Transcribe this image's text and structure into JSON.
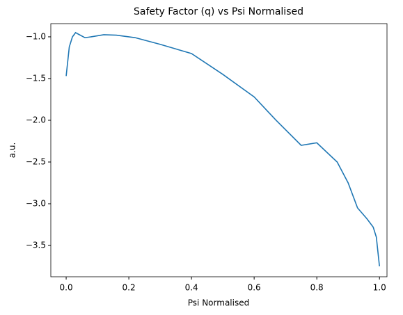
{
  "chart_data": {
    "type": "line",
    "title": "Safety Factor (q) vs Psi Normalised",
    "x_label": "Psi Normalised",
    "y_label": "a.u.",
    "x": [
      0,
      0.01,
      0.02,
      0.03,
      0.04,
      0.06,
      0.08,
      0.12,
      0.16,
      0.22,
      0.3,
      0.4,
      0.5,
      0.6,
      0.67,
      0.75,
      0.8,
      0.865,
      0.9,
      0.93,
      0.96,
      0.98,
      0.99,
      1.0
    ],
    "series": [
      {
        "name": "q",
        "color": "#1f77b4",
        "values": [
          -1.47,
          -1.12,
          -1.0,
          -0.95,
          -0.97,
          -1.01,
          -1.0,
          -0.975,
          -0.98,
          -1.01,
          -1.09,
          -1.2,
          -1.45,
          -1.72,
          -2.0,
          -2.3,
          -2.27,
          -2.5,
          -2.75,
          -3.05,
          -3.18,
          -3.28,
          -3.4,
          -3.75
        ]
      }
    ],
    "xlim": [
      -0.049,
      1.024
    ],
    "ylim": [
      -3.875,
      -0.842
    ],
    "xticks": [
      {
        "value": 0,
        "label": "0.0"
      },
      0.2,
      0.4,
      0.6,
      0.8,
      {
        "value": 1,
        "label": "1.0"
      }
    ],
    "yticks": [
      {
        "value": -1,
        "label": "−1.0"
      },
      {
        "value": -1.5,
        "label": "−1.5"
      },
      {
        "value": -2,
        "label": "−2.0"
      },
      {
        "value": -2.5,
        "label": "−2.5"
      },
      {
        "value": -3,
        "label": "−3.0"
      },
      {
        "value": -3.5,
        "label": "−3.5"
      }
    ],
    "grid": false
  }
}
